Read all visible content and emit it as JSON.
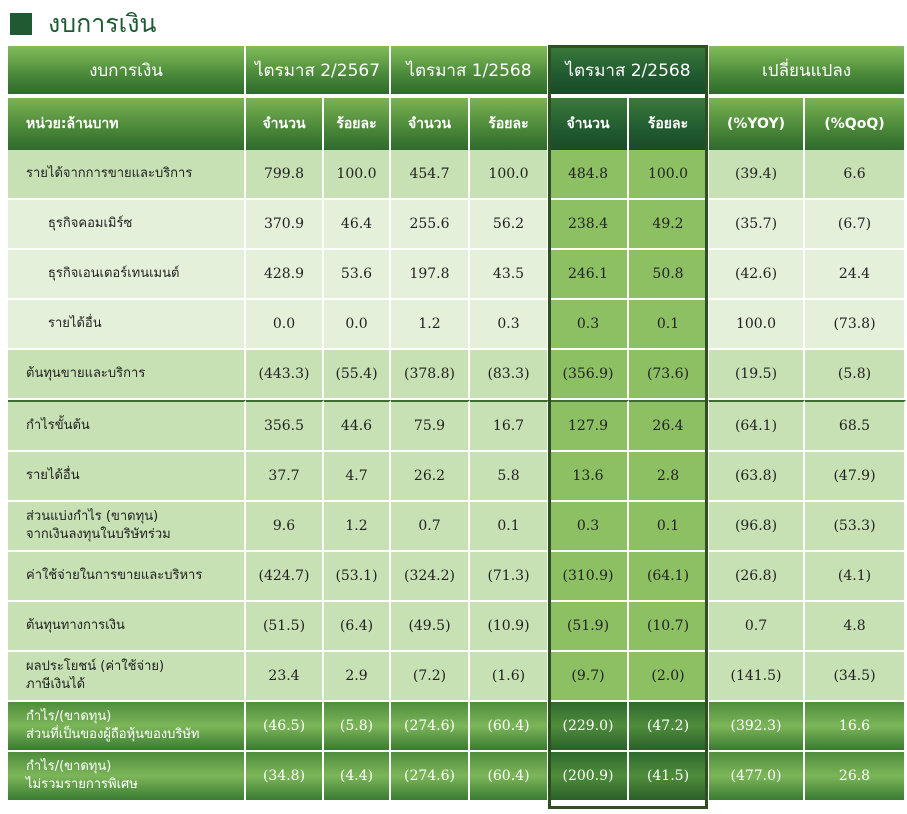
{
  "title": "งบการเงิน",
  "colors": {
    "dark_green": "#1f5a32",
    "mid_green": "#4e8d3c",
    "light_row": "#c7e1b4",
    "lighter_row": "#e4f0da",
    "highlight": "#8cc063"
  },
  "header": {
    "col1": "งบการเงิน",
    "periods": [
      "ไตรมาส 2/2567",
      "ไตรมาส 1/2568",
      "ไตรมาส 2/2568"
    ],
    "change": "เปลี่ยนแปลง"
  },
  "subheader": {
    "unit": "หน่วย:ล้านบาท",
    "amount": "จำนวน",
    "percent": "ร้อยละ",
    "yoy": "(%YOY)",
    "qoq": "(%QoQ)"
  },
  "rows": [
    {
      "label": [
        "รายได้จากการขายและบริการ"
      ],
      "values": [
        "799.8",
        "100.0",
        "454.7",
        "100.0",
        "484.8",
        "100.0",
        "(39.4)",
        "6.6"
      ]
    },
    {
      "label": [
        "ธุรกิจคอมเมิร์ซ"
      ],
      "values": [
        "370.9",
        "46.4",
        "255.6",
        "56.2",
        "238.4",
        "49.2",
        "(35.7)",
        "(6.7)"
      ]
    },
    {
      "label": [
        "ธุรกิจเอนเตอร์เทนเมนต์"
      ],
      "values": [
        "428.9",
        "53.6",
        "197.8",
        "43.5",
        "246.1",
        "50.8",
        "(42.6)",
        "24.4"
      ]
    },
    {
      "label": [
        "รายได้อื่น"
      ],
      "values": [
        "0.0",
        "0.0",
        "1.2",
        "0.3",
        "0.3",
        "0.1",
        "100.0",
        "(73.8)"
      ]
    },
    {
      "label": [
        "ต้นทุนขายและบริการ"
      ],
      "values": [
        "(443.3)",
        "(55.4)",
        "(378.8)",
        "(83.3)",
        "(356.9)",
        "(73.6)",
        "(19.5)",
        "(5.8)"
      ]
    },
    {
      "label": [
        "กำไรขั้นต้น"
      ],
      "values": [
        "356.5",
        "44.6",
        "75.9",
        "16.7",
        "127.9",
        "26.4",
        "(64.1)",
        "68.5"
      ]
    },
    {
      "label": [
        "รายได้อื่น"
      ],
      "values": [
        "37.7",
        "4.7",
        "26.2",
        "5.8",
        "13.6",
        "2.8",
        "(63.8)",
        "(47.9)"
      ]
    },
    {
      "label": [
        "ส่วนแบ่งกำไร (ขาดทุน)",
        "จากเงินลงทุนในบริษัทร่วม"
      ],
      "values": [
        "9.6",
        "1.2",
        "0.7",
        "0.1",
        "0.3",
        "0.1",
        "(96.8)",
        "(53.3)"
      ]
    },
    {
      "label": [
        "ค่าใช้จ่ายในการขายและบริหาร"
      ],
      "values": [
        "(424.7)",
        "(53.1)",
        "(324.2)",
        "(71.3)",
        "(310.9)",
        "(64.1)",
        "(26.8)",
        "(4.1)"
      ]
    },
    {
      "label": [
        "ต้นทุนทางการเงิน"
      ],
      "values": [
        "(51.5)",
        "(6.4)",
        "(49.5)",
        "(10.9)",
        "(51.9)",
        "(10.7)",
        "0.7",
        "4.8"
      ]
    },
    {
      "label": [
        "ผลประโยชน์ (ค่าใช้จ่าย)",
        "ภาษีเงินได้"
      ],
      "values": [
        "23.4",
        "2.9",
        "(7.2)",
        "(1.6)",
        "(9.7)",
        "(2.0)",
        "(141.5)",
        "(34.5)"
      ]
    }
  ],
  "footer_rows": [
    {
      "label": [
        "กำไร/(ขาดทุน)",
        "ส่วนที่เป็นของผู้ถือหุ้นของบริษัท"
      ],
      "values": [
        "(46.5)",
        "(5.8)",
        "(274.6)",
        "(60.4)",
        "(229.0)",
        "(47.2)",
        "(392.3)",
        "16.6"
      ]
    },
    {
      "label": [
        "กำไร/(ขาดทุน)",
        "ไม่รวมรายการพิเศษ"
      ],
      "values": [
        "(34.8)",
        "(4.4)",
        "(274.6)",
        "(60.4)",
        "(200.9)",
        "(41.5)",
        "(477.0)",
        "26.8"
      ]
    }
  ]
}
